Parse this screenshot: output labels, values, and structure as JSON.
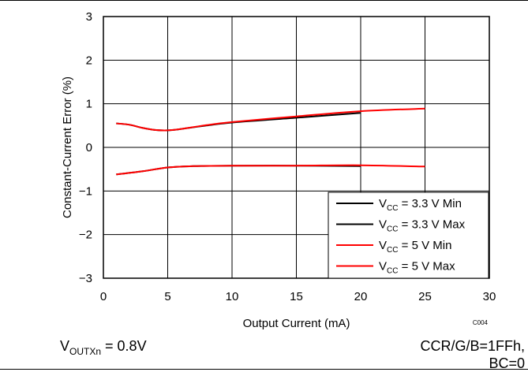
{
  "chart_data": {
    "type": "line",
    "title": "",
    "xlabel": "Output Current (mA)",
    "ylabel": "Constant-Current Error (%)",
    "xlim": [
      0,
      30
    ],
    "ylim": [
      -3,
      3
    ],
    "xticks": [
      "0",
      "5",
      "10",
      "15",
      "20",
      "25",
      "30"
    ],
    "yticks": [
      "3",
      "2",
      "1",
      "0",
      "−1",
      "−2",
      "−3"
    ],
    "grid": true,
    "legend_position": "bottom-right",
    "figure_code": "C004",
    "series": [
      {
        "name": "VCC = 3.3 V Min",
        "name_main": "V",
        "name_sub": "CC",
        "name_rest": " = 3.3 V Min",
        "color": "#000000",
        "x": [
          1,
          3,
          5,
          7,
          10,
          15,
          20
        ],
        "y": [
          -0.62,
          -0.55,
          -0.46,
          -0.43,
          -0.42,
          -0.42,
          -0.43
        ]
      },
      {
        "name": "VCC = 3.3 V Max",
        "name_main": "V",
        "name_sub": "CC",
        "name_rest": " = 3.3 V Max",
        "color": "#000000",
        "x": [
          1,
          2,
          3,
          4,
          5,
          6,
          8,
          10,
          15,
          20
        ],
        "y": [
          0.55,
          0.52,
          0.45,
          0.4,
          0.39,
          0.42,
          0.5,
          0.57,
          0.68,
          0.79
        ]
      },
      {
        "name": "VCC = 5 V Min",
        "name_main": "V",
        "name_sub": "CC",
        "name_rest": " = 5 V Min",
        "color": "#ff0000",
        "x": [
          1,
          3,
          5,
          7,
          10,
          15,
          20,
          25
        ],
        "y": [
          -0.62,
          -0.55,
          -0.46,
          -0.43,
          -0.42,
          -0.42,
          -0.41,
          -0.44
        ]
      },
      {
        "name": "VCC = 5 V Max",
        "name_main": "V",
        "name_sub": "CC",
        "name_rest": " = 5 V Max",
        "color": "#ff0000",
        "x": [
          1,
          2,
          3,
          4,
          5,
          6,
          8,
          10,
          15,
          20,
          25
        ],
        "y": [
          0.55,
          0.52,
          0.45,
          0.4,
          0.39,
          0.42,
          0.51,
          0.58,
          0.71,
          0.83,
          0.89
        ]
      }
    ]
  },
  "notes": {
    "left_main": "V",
    "left_sub": "OUTXn",
    "left_rest": " = 0.8V",
    "right_line1": "CCR/G/B=1FFh,",
    "right_line2": "BC=0"
  }
}
